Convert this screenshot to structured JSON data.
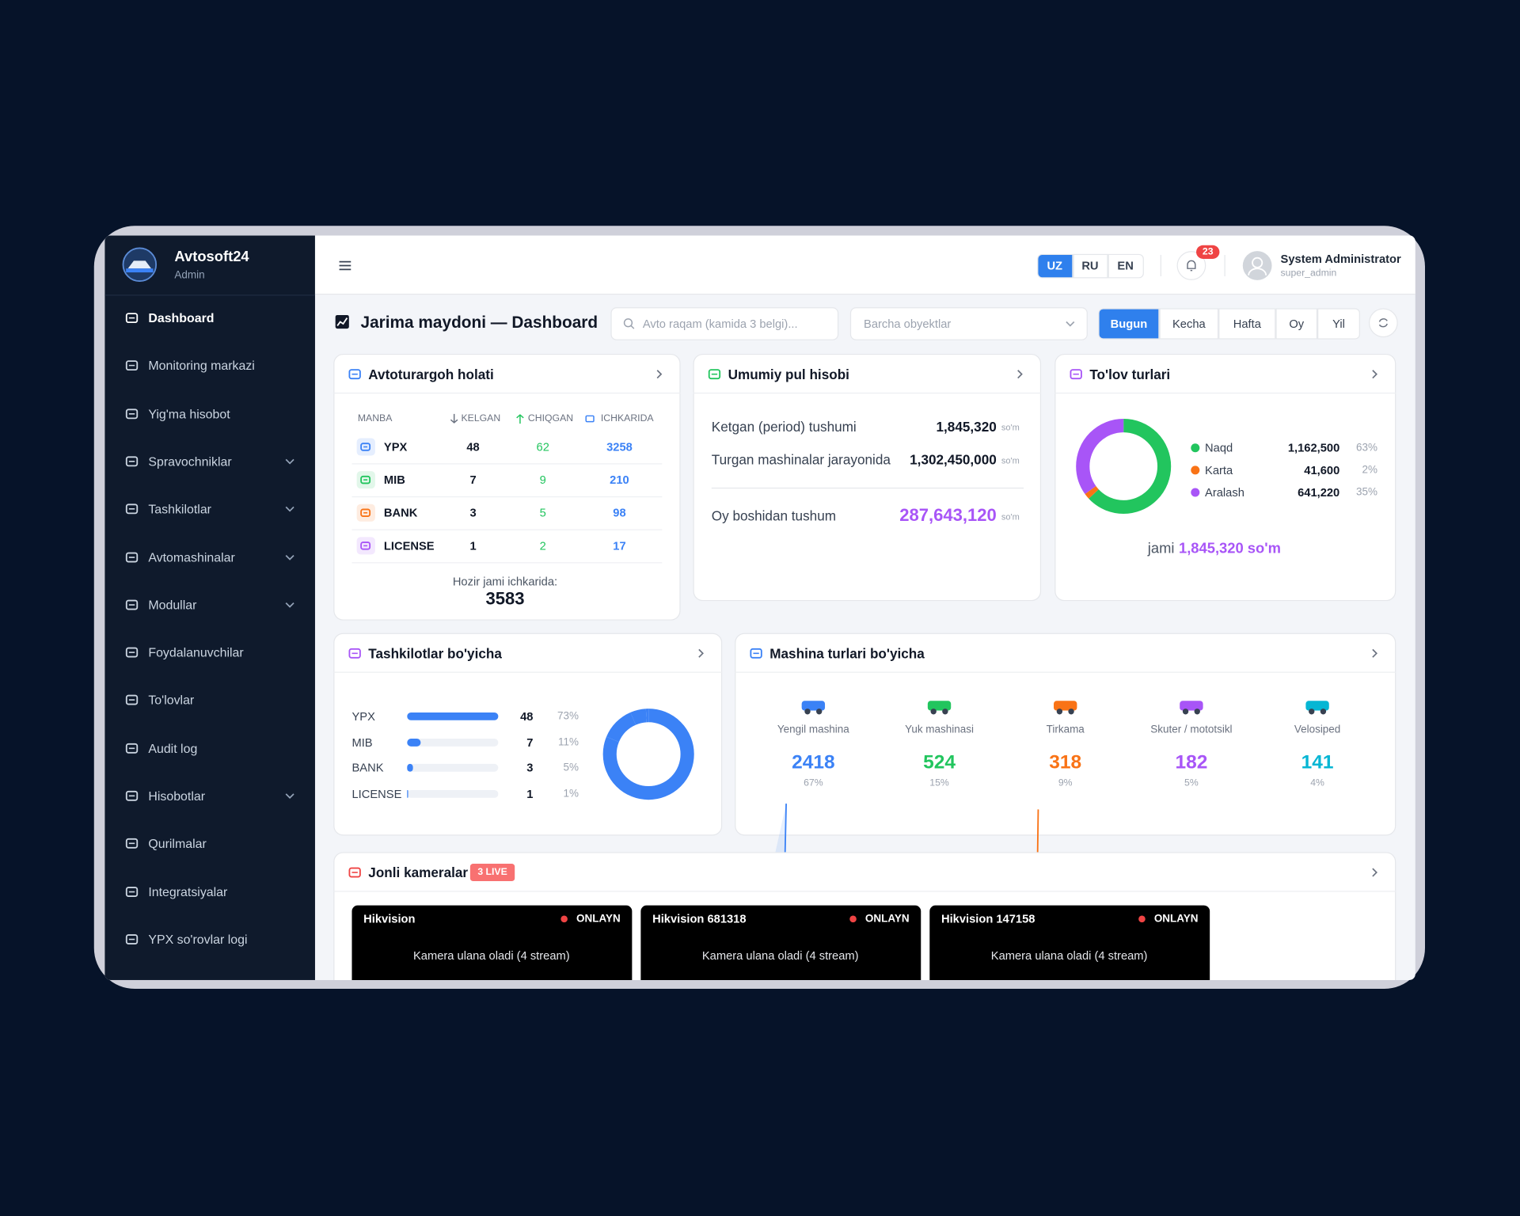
{
  "sidebar": {
    "brand": "Avtosoft24",
    "role": "Admin",
    "nav": [
      {
        "label": "Dashboard",
        "active": true,
        "expandable": false
      },
      {
        "label": "Monitoring markazi",
        "active": false,
        "expandable": false
      },
      {
        "label": "Yig'ma hisobot",
        "active": false,
        "expandable": false
      },
      {
        "label": "Spravochniklar",
        "active": false,
        "expandable": true
      },
      {
        "label": "Tashkilotlar",
        "active": false,
        "expandable": true
      },
      {
        "label": "Avtomashinalar",
        "active": false,
        "expandable": true
      },
      {
        "label": "Modullar",
        "active": false,
        "expandable": true
      },
      {
        "label": "Foydalanuvchilar",
        "active": false,
        "expandable": false
      },
      {
        "label": "To'lovlar",
        "active": false,
        "expandable": false
      },
      {
        "label": "Audit log",
        "active": false,
        "expandable": false
      },
      {
        "label": "Hisobotlar",
        "active": false,
        "expandable": true
      },
      {
        "label": "Qurilmalar",
        "active": false,
        "expandable": false
      },
      {
        "label": "Integratsiyalar",
        "active": false,
        "expandable": false
      },
      {
        "label": "YPX so'rovlar logi",
        "active": false,
        "expandable": false
      }
    ]
  },
  "topbar": {
    "languages": [
      "UZ",
      "RU",
      "EN"
    ],
    "active_language": 0,
    "notifications": 23,
    "user_name": "System Administrator",
    "user_login": "super_admin"
  },
  "toolbar": {
    "title": "Jarima maydoni — Dashboard",
    "search_placeholder": "Avto raqam (kamida 3 belgi)...",
    "object_select": "Barcha obyektlar",
    "periods": [
      "Bugun",
      "Kecha",
      "Hafta",
      "Oy",
      "Yil"
    ],
    "active_period": 0
  },
  "parking": {
    "title": "Avtoturargoh holati",
    "columns": [
      "MANBA",
      "KELGAN",
      "CHIQGAN",
      "ICHKARIDA"
    ],
    "rows": [
      {
        "source": "YPX",
        "in": 48,
        "out": 62,
        "inside": 3258
      },
      {
        "source": "MIB",
        "in": 7,
        "out": 9,
        "inside": 210
      },
      {
        "source": "BANK",
        "in": 3,
        "out": 5,
        "inside": 98
      },
      {
        "source": "LICENSE",
        "in": 1,
        "out": 2,
        "inside": 17
      }
    ],
    "total_label": "Hozir jami ichkarida:",
    "total": 3583
  },
  "money": {
    "title": "Umumiy pul hisobi",
    "rows": [
      {
        "label": "Ketgan (period) tushumi",
        "value": "1,845,320",
        "unit": "so'm"
      },
      {
        "label": "Turgan mashinalar jarayonida",
        "value": "1,302,450,000",
        "unit": "so'm"
      },
      {
        "label": "Oy boshidan tushum",
        "value": "287,643,120",
        "unit": "so'm"
      }
    ]
  },
  "payments": {
    "title": "To'lov turlari",
    "items": [
      {
        "name": "Naqd",
        "amount": "1,162,500",
        "percent": 63,
        "percent_label": "63%",
        "color": "#22c55e"
      },
      {
        "name": "Karta",
        "amount": "41,600",
        "percent": 2,
        "percent_label": "2%",
        "color": "#f97316"
      },
      {
        "name": "Aralash",
        "amount": "641,220",
        "percent": 35,
        "percent_label": "35%",
        "color": "#a855f7"
      }
    ],
    "total_prefix": "jami",
    "total": "1,845,320 so'm"
  },
  "organizations": {
    "title": "Tashkilotlar bo'yicha",
    "color": "#3b82f6",
    "rows": [
      {
        "name": "YPX",
        "count": 48,
        "percent": 73,
        "percent_label": "73%"
      },
      {
        "name": "MIB",
        "count": 7,
        "percent": 11,
        "percent_label": "11%"
      },
      {
        "name": "BANK",
        "count": 3,
        "percent": 5,
        "percent_label": "5%"
      },
      {
        "name": "LICENSE",
        "count": 1,
        "percent": 1,
        "percent_label": "1%"
      }
    ]
  },
  "vehicles": {
    "title": "Mashina turlari bo'yicha",
    "items": [
      {
        "name": "Yengil mashina",
        "count": 2418,
        "percent_label": "67%",
        "color": "#3b82f6"
      },
      {
        "name": "Yuk mashinasi",
        "count": 524,
        "percent_label": "15%",
        "color": "#22c55e"
      },
      {
        "name": "Tirkama",
        "count": 318,
        "percent_label": "9%",
        "color": "#f97316"
      },
      {
        "name": "Skuter / mototsikl",
        "count": 182,
        "percent_label": "5%",
        "color": "#a855f7"
      },
      {
        "name": "Velosiped",
        "count": 141,
        "percent_label": "4%",
        "color": "#06b6d4"
      }
    ]
  },
  "cameras": {
    "title": "Jonli kameralar",
    "badge": "3 LIVE",
    "items": [
      {
        "name": "Hikvision",
        "status": "ONLAYN",
        "message": "Kamera ulana oladi (4 stream)"
      },
      {
        "name": "Hikvision 681318",
        "status": "ONLAYN",
        "message": "Kamera ulana oladi (4 stream)"
      },
      {
        "name": "Hikvision 147158",
        "status": "ONLAYN",
        "message": "Kamera ulana oladi (4 stream)"
      }
    ]
  }
}
